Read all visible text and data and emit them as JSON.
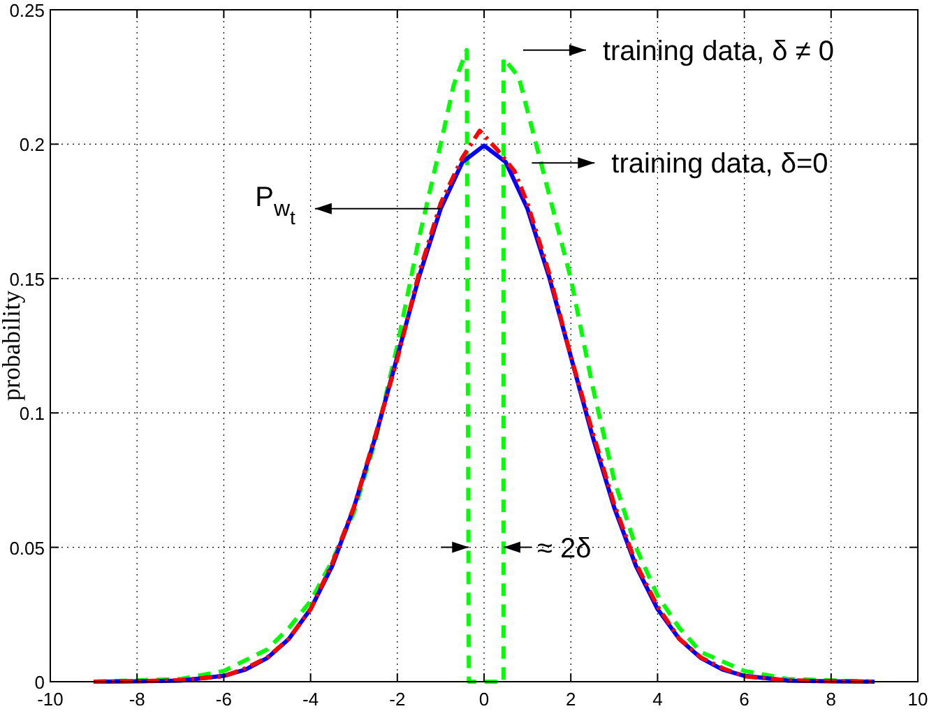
{
  "chart_data": {
    "type": "line",
    "ylabel": "probability",
    "xlim": [
      -10,
      10
    ],
    "ylim": [
      0,
      0.25
    ],
    "xticks": [
      -10,
      -8,
      -6,
      -4,
      -2,
      0,
      2,
      4,
      6,
      8,
      10
    ],
    "yticks": [
      0,
      0.05,
      0.1,
      0.15,
      0.2,
      0.25
    ],
    "grid": true,
    "series": [
      {
        "color": "#00ff00",
        "line_style": "dashed",
        "x": [
          -9,
          -7,
          -6,
          -5,
          -4.5,
          -4,
          -3.5,
          -3,
          -2.5,
          -2,
          -1.5,
          -1,
          -0.7,
          -0.4,
          -0.35,
          0.45,
          0.45,
          0.8,
          1.2,
          1.6,
          2,
          2.5,
          3,
          3.5,
          4,
          4.5,
          5,
          6,
          7,
          9
        ],
        "values": [
          0,
          0.001,
          0.004,
          0.012,
          0.02,
          0.03,
          0.045,
          0.063,
          0.09,
          0.125,
          0.165,
          0.2,
          0.222,
          0.235,
          0,
          0,
          0.232,
          0.225,
          0.2,
          0.175,
          0.15,
          0.11,
          0.075,
          0.05,
          0.032,
          0.02,
          0.011,
          0.004,
          0.001,
          0
        ]
      },
      {
        "color": "#0000ff",
        "line_style": "solid",
        "x": [
          -9,
          -8,
          -7,
          -6,
          -5.5,
          -5,
          -4.5,
          -4,
          -3.5,
          -3,
          -2.5,
          -2,
          -1.5,
          -1,
          -0.5,
          0,
          0.5,
          1,
          1.5,
          2,
          2.5,
          3,
          3.5,
          4,
          4.5,
          5,
          5.5,
          6,
          7,
          8,
          9
        ],
        "values": [
          0,
          0.0001,
          0.0004,
          0.0022,
          0.0045,
          0.0088,
          0.0159,
          0.027,
          0.0431,
          0.0648,
          0.0913,
          0.121,
          0.1506,
          0.176,
          0.1933,
          0.1995,
          0.1933,
          0.176,
          0.1506,
          0.121,
          0.0913,
          0.0648,
          0.0431,
          0.027,
          0.0159,
          0.0088,
          0.0045,
          0.0022,
          0.0004,
          0.0001,
          0
        ]
      },
      {
        "color": "#ff0000",
        "line_style": "dashdot",
        "x": [
          -9,
          -8,
          -7,
          -6,
          -5.5,
          -5,
          -4.5,
          -4,
          -3.5,
          -3,
          -2.5,
          -2,
          -1.5,
          -1,
          -0.5,
          -0.1,
          0.3,
          0.7,
          1,
          1.5,
          2,
          2.5,
          3,
          3.5,
          4,
          4.5,
          5,
          5.5,
          6,
          7,
          8,
          9
        ],
        "values": [
          0,
          0.0002,
          0.0006,
          0.002,
          0.005,
          0.009,
          0.016,
          0.027,
          0.044,
          0.065,
          0.092,
          0.12,
          0.152,
          0.178,
          0.195,
          0.205,
          0.198,
          0.19,
          0.178,
          0.152,
          0.121,
          0.093,
          0.066,
          0.044,
          0.028,
          0.016,
          0.009,
          0.005,
          0.002,
          0.0005,
          0.0002,
          0
        ]
      }
    ],
    "annotations": [
      "training data, δ ≠ 0",
      "training data, δ=0",
      {
        "text": "P$_{w}$$_{t}$",
        "x": -1,
        "y": 0.176
      },
      "≈ 2δ"
    ]
  }
}
